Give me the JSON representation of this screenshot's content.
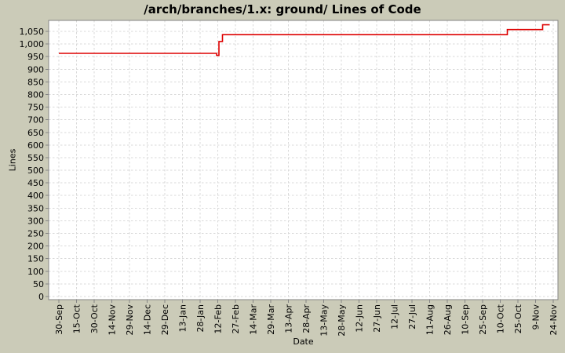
{
  "colors": {
    "background": "#cbcbb8",
    "plot_background": "#ffffff",
    "plot_border": "#848484",
    "gridline": "#d9d9d9",
    "line": "#dd0000",
    "text": "#000000"
  },
  "chart_data": {
    "type": "line",
    "title": "/arch/branches/1.x: ground/ Lines of Code",
    "xlabel": "Date",
    "ylabel": "Lines",
    "legend_position": "none",
    "grid": true,
    "x_tick_labels": [
      "30-Sep",
      "15-Oct",
      "30-Oct",
      "14-Nov",
      "29-Nov",
      "14-Dec",
      "29-Dec",
      "13-Jan",
      "28-Jan",
      "12-Feb",
      "27-Feb",
      "14-Mar",
      "29-Mar",
      "13-Apr",
      "28-Apr",
      "13-May",
      "28-May",
      "12-Jun",
      "27-Jun",
      "12-Jul",
      "27-Jul",
      "11-Aug",
      "26-Aug",
      "10-Sep",
      "25-Sep",
      "10-Oct",
      "25-Oct",
      "9-Nov",
      "24-Nov"
    ],
    "x_days_per_tick": 15,
    "y_tick_min": 0,
    "y_tick_max": 1050,
    "y_tick_step": 50,
    "ylim": [
      -12,
      1094
    ],
    "series": [
      {
        "name": "lines-of-code",
        "color": "#dd0000",
        "points_day_value": [
          [
            0,
            963
          ],
          [
            134,
            963
          ],
          [
            134,
            955
          ],
          [
            136,
            955
          ],
          [
            136,
            1010
          ],
          [
            139,
            1010
          ],
          [
            139,
            1037
          ],
          [
            381,
            1037
          ],
          [
            381,
            1057
          ],
          [
            411,
            1057
          ],
          [
            411,
            1076
          ],
          [
            417,
            1076
          ]
        ]
      }
    ]
  }
}
